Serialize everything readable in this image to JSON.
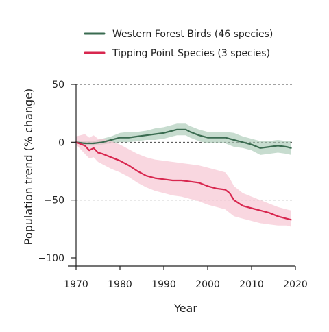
{
  "chart_data": {
    "type": "line",
    "title": "",
    "xlabel": "Year",
    "ylabel": "Population trend (% change)",
    "xlim": [
      1970,
      2020
    ],
    "ylim": [
      -100,
      50
    ],
    "x_ticks": [
      1970,
      1980,
      1990,
      2000,
      2010,
      2020
    ],
    "y_ticks": [
      50,
      0,
      -50,
      -100
    ],
    "y_tick_labels": [
      "50",
      "0",
      "−50",
      "−100"
    ],
    "reference_lines": [
      50,
      0,
      -50
    ],
    "legend_position": "top-center",
    "series": [
      {
        "name": "Western Forest Birds (46 species)",
        "color": "#3a6b50",
        "band_color": "#a9c9b6",
        "x": [
          1970,
          1972,
          1974,
          1976,
          1978,
          1980,
          1982,
          1984,
          1986,
          1988,
          1990,
          1992,
          1993,
          1995,
          1996,
          1998,
          2000,
          2002,
          2004,
          2006,
          2008,
          2010,
          2012,
          2014,
          2016,
          2018,
          2019
        ],
        "values": [
          0,
          -1,
          -1,
          0,
          2,
          4,
          4,
          5,
          6,
          7,
          8,
          10,
          11,
          11,
          9,
          6,
          4,
          4,
          4,
          2,
          0,
          -2,
          -5,
          -4,
          -3,
          -4,
          -5
        ],
        "lower": [
          -1,
          -3,
          -3,
          -2,
          -1,
          0,
          0,
          1,
          2,
          2,
          3,
          5,
          6,
          6,
          4,
          1,
          -1,
          -1,
          -1,
          -4,
          -5,
          -7,
          -11,
          -10,
          -9,
          -10,
          -11
        ],
        "upper": [
          1,
          1,
          1,
          3,
          5,
          8,
          9,
          9,
          10,
          12,
          13,
          15,
          16,
          16,
          14,
          11,
          9,
          9,
          9,
          8,
          5,
          3,
          1,
          1,
          2,
          1,
          1
        ]
      },
      {
        "name": "Tipping Point Species (3 species)",
        "color": "#d8274f",
        "band_color": "#f6c2cf",
        "x": [
          1970,
          1972,
          1973,
          1974,
          1975,
          1976,
          1978,
          1980,
          1982,
          1984,
          1986,
          1988,
          1990,
          1992,
          1994,
          1996,
          1998,
          2000,
          2002,
          2004,
          2005,
          2006,
          2008,
          2010,
          2012,
          2014,
          2016,
          2018,
          2019
        ],
        "values": [
          0,
          -3,
          -7,
          -5,
          -9,
          -10,
          -13,
          -16,
          -20,
          -25,
          -29,
          -31,
          -32,
          -33,
          -33,
          -34,
          -35,
          -38,
          -40,
          -41,
          -44,
          -50,
          -55,
          -57,
          -59,
          -61,
          -64,
          -66,
          -67
        ],
        "lower": [
          -2,
          -10,
          -14,
          -13,
          -17,
          -19,
          -23,
          -26,
          -30,
          -35,
          -39,
          -42,
          -44,
          -46,
          -47,
          -49,
          -51,
          -54,
          -56,
          -58,
          -61,
          -64,
          -66,
          -68,
          -70,
          -71,
          -72,
          -72,
          -73
        ],
        "upper": [
          5,
          7,
          4,
          6,
          3,
          3,
          1,
          -2,
          -6,
          -10,
          -13,
          -15,
          -16,
          -17,
          -18,
          -19,
          -20,
          -22,
          -24,
          -26,
          -31,
          -38,
          -44,
          -47,
          -50,
          -53,
          -56,
          -58,
          -59
        ]
      }
    ]
  }
}
